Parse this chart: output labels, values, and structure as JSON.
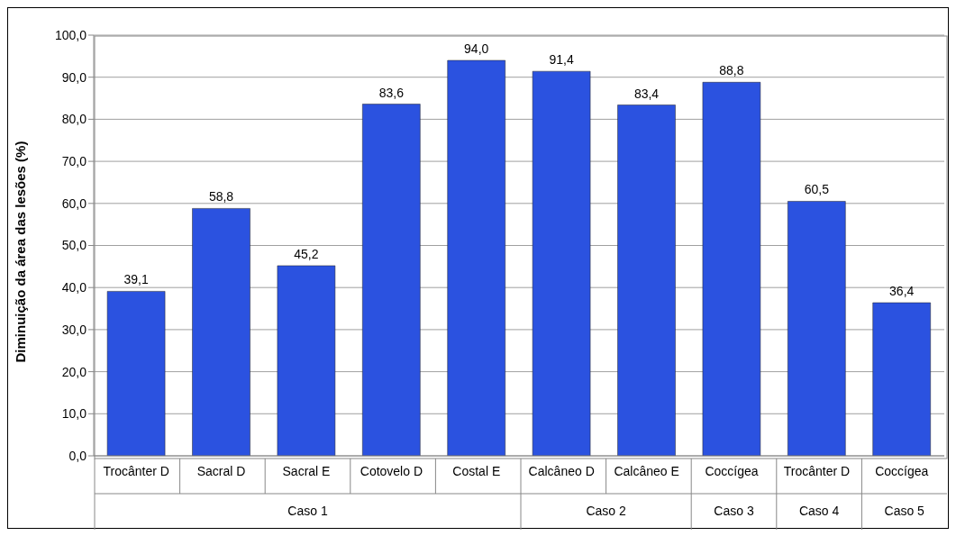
{
  "chart_data": {
    "type": "bar",
    "ylabel": "Diminuição da área das lesões (%)",
    "categories": [
      "Trocânter D",
      "Sacral D",
      "Sacral E",
      "Cotovelo D",
      "Costal E",
      "Calcâneo D",
      "Calcâneo E",
      "Coccígea",
      "Trocânter D",
      "Coccígea"
    ],
    "values": [
      39.1,
      58.8,
      45.2,
      83.6,
      94.0,
      91.4,
      83.4,
      88.8,
      60.5,
      36.4
    ],
    "value_labels": [
      "39,1",
      "58,8",
      "45,2",
      "83,6",
      "94,0",
      "91,4",
      "83,4",
      "88,8",
      "60,5",
      "36,4"
    ],
    "color": "#2b52e0",
    "ylim": [
      0,
      100
    ],
    "yticks": [
      {
        "value": 0,
        "label": "0,0"
      },
      {
        "value": 10,
        "label": "10,0"
      },
      {
        "value": 20,
        "label": "20,0"
      },
      {
        "value": 30,
        "label": "30,0"
      },
      {
        "value": 40,
        "label": "40,0"
      },
      {
        "value": 50,
        "label": "50,0"
      },
      {
        "value": 60,
        "label": "60,0"
      },
      {
        "value": 70,
        "label": "70,0"
      },
      {
        "value": 80,
        "label": "80,0"
      },
      {
        "value": 90,
        "label": "90,0"
      },
      {
        "value": 100,
        "label": "100,0"
      }
    ],
    "grid": "y",
    "annotations": [
      "Caso 1",
      "Caso 2",
      "Caso 3",
      "Caso 4",
      "Caso 5"
    ]
  }
}
